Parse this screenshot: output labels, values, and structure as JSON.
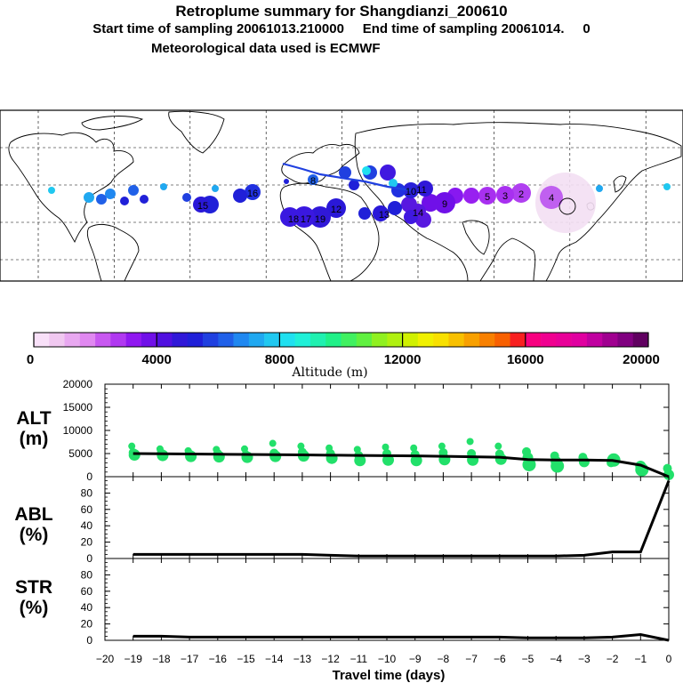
{
  "header": {
    "title": "Retroplume summary for Shangdianzi_200610",
    "sampling": "Start time of sampling 20061013.210000     End time of sampling 20061014.     0",
    "met": "Meteorological data used is ECMWF"
  },
  "colorbar": {
    "title": "Altitude (m)",
    "tick_labels": [
      "0",
      "4000",
      "8000",
      "12000",
      "16000",
      "20000"
    ],
    "colors": [
      "#f8e0f8",
      "#f0c8f0",
      "#e8a8f0",
      "#e088f0",
      "#c858f0",
      "#b038f0",
      "#9018f0",
      "#7010e8",
      "#5010e0",
      "#3018d8",
      "#2020d8",
      "#2040e0",
      "#2060e8",
      "#2088f0",
      "#20a8f0",
      "#20c8f0",
      "#20e0f0",
      "#20f0d8",
      "#20f0b0",
      "#20f088",
      "#40f060",
      "#60f040",
      "#90f020",
      "#b0f010",
      "#d0f000",
      "#f0f000",
      "#f8e000",
      "#f8c000",
      "#f8a000",
      "#f88000",
      "#f86000",
      "#f82020",
      "#f80080",
      "#f00090",
      "#e80098",
      "#e000a0",
      "#c000a0",
      "#a00090",
      "#800080",
      "#600060"
    ]
  },
  "map": {
    "plume_labels": [
      "4",
      "2",
      "5",
      "3",
      "8",
      "9",
      "10",
      "11",
      "12",
      "13",
      "14",
      "15",
      "16",
      "17",
      "18",
      "19"
    ]
  },
  "axes": {
    "x_ticks": [
      "−20",
      "−19",
      "−18",
      "−17",
      "−16",
      "−15",
      "−14",
      "−13",
      "−12",
      "−11",
      "−10",
      "−9",
      "−8",
      "−7",
      "−6",
      "−5",
      "−4",
      "−3",
      "−2",
      "−1",
      "0"
    ],
    "xlabel": "Travel time (days)"
  },
  "chart_data": [
    {
      "type": "line",
      "panel_label": "ALT\n(m)",
      "ylim": [
        0,
        20000
      ],
      "y_ticks": [
        "0",
        "5000",
        "10000",
        "15000",
        "20000"
      ],
      "x": [
        -19,
        -18,
        -17,
        -16,
        -15,
        -14,
        -13,
        -12,
        -11,
        -10,
        -9,
        -8,
        -7,
        -6,
        -5,
        -4,
        -3,
        -2,
        -1,
        0
      ],
      "values": [
        5000,
        4950,
        4900,
        4850,
        4800,
        4750,
        4700,
        4650,
        4600,
        4550,
        4500,
        4400,
        4300,
        4200,
        3700,
        3600,
        3600,
        3500,
        2500,
        0
      ],
      "scatter_points": [
        [
          -19,
          6600
        ],
        [
          -19,
          5200
        ],
        [
          -19,
          4700
        ],
        [
          -18,
          6000
        ],
        [
          -18,
          5100
        ],
        [
          -18,
          4600
        ],
        [
          -17,
          5600
        ],
        [
          -17,
          4900
        ],
        [
          -17,
          4400
        ],
        [
          -16,
          5900
        ],
        [
          -16,
          5000
        ],
        [
          -16,
          4300
        ],
        [
          -15,
          6000
        ],
        [
          -15,
          4700
        ],
        [
          -15,
          4200
        ],
        [
          -14,
          7200
        ],
        [
          -14,
          5100
        ],
        [
          -14,
          4400
        ],
        [
          -13,
          6600
        ],
        [
          -13,
          5300
        ],
        [
          -13,
          4500
        ],
        [
          -12,
          6200
        ],
        [
          -12,
          5000
        ],
        [
          -12,
          4000
        ],
        [
          -11,
          5900
        ],
        [
          -11,
          4600
        ],
        [
          -11,
          3500
        ],
        [
          -10,
          6400
        ],
        [
          -10,
          5000
        ],
        [
          -10,
          3600
        ],
        [
          -9,
          6200
        ],
        [
          -9,
          4800
        ],
        [
          -9,
          3500
        ],
        [
          -8,
          6600
        ],
        [
          -8,
          5200
        ],
        [
          -8,
          3700
        ],
        [
          -7,
          7600
        ],
        [
          -7,
          5000
        ],
        [
          -7,
          3600
        ],
        [
          -6,
          6600
        ],
        [
          -6,
          4900
        ],
        [
          -6,
          3800
        ],
        [
          -5,
          5400
        ],
        [
          -5,
          4100
        ],
        [
          -5,
          2600
        ],
        [
          -4,
          4500
        ],
        [
          -4,
          3300
        ],
        [
          -4,
          2300
        ],
        [
          -3,
          4200
        ],
        [
          -3,
          3200
        ],
        [
          -2,
          3600
        ],
        [
          -2,
          3000
        ],
        [
          -1,
          2300
        ],
        [
          -1,
          1500
        ],
        [
          0,
          1800
        ],
        [
          0,
          400
        ]
      ]
    },
    {
      "type": "line",
      "panel_label": "ABL\n(%)",
      "ylim": [
        0,
        100
      ],
      "y_ticks": [
        "0",
        "20",
        "40",
        "60",
        "80"
      ],
      "x": [
        -19,
        -18,
        -17,
        -16,
        -15,
        -14,
        -13,
        -12,
        -11,
        -10,
        -9,
        -8,
        -7,
        -6,
        -5,
        -4,
        -3,
        -2,
        -1,
        0
      ],
      "values": [
        5,
        5,
        5,
        5,
        5,
        5,
        5,
        4,
        3,
        3,
        3,
        3,
        3,
        3,
        3,
        3,
        4,
        8,
        8,
        95
      ]
    },
    {
      "type": "line",
      "panel_label": "STR\n(%)",
      "ylim": [
        0,
        100
      ],
      "y_ticks": [
        "0",
        "20",
        "40",
        "60",
        "80"
      ],
      "x": [
        -19,
        -18,
        -17,
        -16,
        -15,
        -14,
        -13,
        -12,
        -11,
        -10,
        -9,
        -8,
        -7,
        -6,
        -5,
        -4,
        -3,
        -2,
        -1,
        0
      ],
      "values": [
        5,
        5,
        4,
        4,
        4,
        4,
        4,
        4,
        4,
        4,
        4,
        4,
        4,
        4,
        3,
        3,
        3,
        4,
        7,
        0
      ]
    }
  ]
}
